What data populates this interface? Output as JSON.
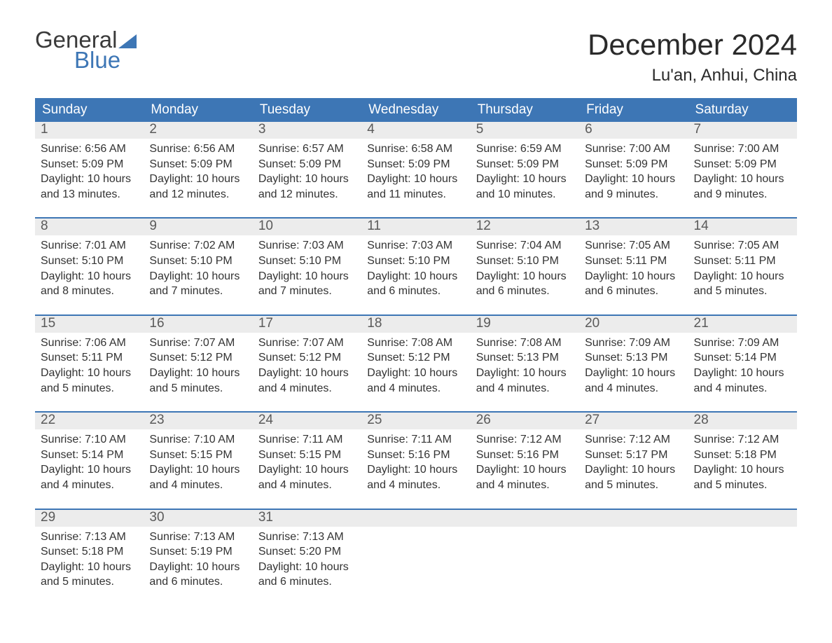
{
  "logo": {
    "word1": "General",
    "word2": "Blue",
    "sail_color": "#3d76b5",
    "text_gray": "#3a3a3a"
  },
  "title": "December 2024",
  "location": "Lu'an, Anhui, China",
  "colors": {
    "header_bg": "#3d76b5",
    "header_text": "#ffffff",
    "datebar_bg": "#ececec",
    "datebar_text": "#5a5a5a",
    "body_text": "#333333",
    "week_divider": "#3d76b5",
    "page_bg": "#ffffff"
  },
  "fonts": {
    "title_size_pt": 32,
    "location_size_pt": 18,
    "dayname_size_pt": 14,
    "body_size_pt": 12
  },
  "day_names": [
    "Sunday",
    "Monday",
    "Tuesday",
    "Wednesday",
    "Thursday",
    "Friday",
    "Saturday"
  ],
  "weeks": [
    [
      {
        "date": "1",
        "sunrise": "Sunrise: 6:56 AM",
        "sunset": "Sunset: 5:09 PM",
        "daylight": "Daylight: 10 hours and 13 minutes."
      },
      {
        "date": "2",
        "sunrise": "Sunrise: 6:56 AM",
        "sunset": "Sunset: 5:09 PM",
        "daylight": "Daylight: 10 hours and 12 minutes."
      },
      {
        "date": "3",
        "sunrise": "Sunrise: 6:57 AM",
        "sunset": "Sunset: 5:09 PM",
        "daylight": "Daylight: 10 hours and 12 minutes."
      },
      {
        "date": "4",
        "sunrise": "Sunrise: 6:58 AM",
        "sunset": "Sunset: 5:09 PM",
        "daylight": "Daylight: 10 hours and 11 minutes."
      },
      {
        "date": "5",
        "sunrise": "Sunrise: 6:59 AM",
        "sunset": "Sunset: 5:09 PM",
        "daylight": "Daylight: 10 hours and 10 minutes."
      },
      {
        "date": "6",
        "sunrise": "Sunrise: 7:00 AM",
        "sunset": "Sunset: 5:09 PM",
        "daylight": "Daylight: 10 hours and 9 minutes."
      },
      {
        "date": "7",
        "sunrise": "Sunrise: 7:00 AM",
        "sunset": "Sunset: 5:09 PM",
        "daylight": "Daylight: 10 hours and 9 minutes."
      }
    ],
    [
      {
        "date": "8",
        "sunrise": "Sunrise: 7:01 AM",
        "sunset": "Sunset: 5:10 PM",
        "daylight": "Daylight: 10 hours and 8 minutes."
      },
      {
        "date": "9",
        "sunrise": "Sunrise: 7:02 AM",
        "sunset": "Sunset: 5:10 PM",
        "daylight": "Daylight: 10 hours and 7 minutes."
      },
      {
        "date": "10",
        "sunrise": "Sunrise: 7:03 AM",
        "sunset": "Sunset: 5:10 PM",
        "daylight": "Daylight: 10 hours and 7 minutes."
      },
      {
        "date": "11",
        "sunrise": "Sunrise: 7:03 AM",
        "sunset": "Sunset: 5:10 PM",
        "daylight": "Daylight: 10 hours and 6 minutes."
      },
      {
        "date": "12",
        "sunrise": "Sunrise: 7:04 AM",
        "sunset": "Sunset: 5:10 PM",
        "daylight": "Daylight: 10 hours and 6 minutes."
      },
      {
        "date": "13",
        "sunrise": "Sunrise: 7:05 AM",
        "sunset": "Sunset: 5:11 PM",
        "daylight": "Daylight: 10 hours and 6 minutes."
      },
      {
        "date": "14",
        "sunrise": "Sunrise: 7:05 AM",
        "sunset": "Sunset: 5:11 PM",
        "daylight": "Daylight: 10 hours and 5 minutes."
      }
    ],
    [
      {
        "date": "15",
        "sunrise": "Sunrise: 7:06 AM",
        "sunset": "Sunset: 5:11 PM",
        "daylight": "Daylight: 10 hours and 5 minutes."
      },
      {
        "date": "16",
        "sunrise": "Sunrise: 7:07 AM",
        "sunset": "Sunset: 5:12 PM",
        "daylight": "Daylight: 10 hours and 5 minutes."
      },
      {
        "date": "17",
        "sunrise": "Sunrise: 7:07 AM",
        "sunset": "Sunset: 5:12 PM",
        "daylight": "Daylight: 10 hours and 4 minutes."
      },
      {
        "date": "18",
        "sunrise": "Sunrise: 7:08 AM",
        "sunset": "Sunset: 5:12 PM",
        "daylight": "Daylight: 10 hours and 4 minutes."
      },
      {
        "date": "19",
        "sunrise": "Sunrise: 7:08 AM",
        "sunset": "Sunset: 5:13 PM",
        "daylight": "Daylight: 10 hours and 4 minutes."
      },
      {
        "date": "20",
        "sunrise": "Sunrise: 7:09 AM",
        "sunset": "Sunset: 5:13 PM",
        "daylight": "Daylight: 10 hours and 4 minutes."
      },
      {
        "date": "21",
        "sunrise": "Sunrise: 7:09 AM",
        "sunset": "Sunset: 5:14 PM",
        "daylight": "Daylight: 10 hours and 4 minutes."
      }
    ],
    [
      {
        "date": "22",
        "sunrise": "Sunrise: 7:10 AM",
        "sunset": "Sunset: 5:14 PM",
        "daylight": "Daylight: 10 hours and 4 minutes."
      },
      {
        "date": "23",
        "sunrise": "Sunrise: 7:10 AM",
        "sunset": "Sunset: 5:15 PM",
        "daylight": "Daylight: 10 hours and 4 minutes."
      },
      {
        "date": "24",
        "sunrise": "Sunrise: 7:11 AM",
        "sunset": "Sunset: 5:15 PM",
        "daylight": "Daylight: 10 hours and 4 minutes."
      },
      {
        "date": "25",
        "sunrise": "Sunrise: 7:11 AM",
        "sunset": "Sunset: 5:16 PM",
        "daylight": "Daylight: 10 hours and 4 minutes."
      },
      {
        "date": "26",
        "sunrise": "Sunrise: 7:12 AM",
        "sunset": "Sunset: 5:16 PM",
        "daylight": "Daylight: 10 hours and 4 minutes."
      },
      {
        "date": "27",
        "sunrise": "Sunrise: 7:12 AM",
        "sunset": "Sunset: 5:17 PM",
        "daylight": "Daylight: 10 hours and 5 minutes."
      },
      {
        "date": "28",
        "sunrise": "Sunrise: 7:12 AM",
        "sunset": "Sunset: 5:18 PM",
        "daylight": "Daylight: 10 hours and 5 minutes."
      }
    ],
    [
      {
        "date": "29",
        "sunrise": "Sunrise: 7:13 AM",
        "sunset": "Sunset: 5:18 PM",
        "daylight": "Daylight: 10 hours and 5 minutes."
      },
      {
        "date": "30",
        "sunrise": "Sunrise: 7:13 AM",
        "sunset": "Sunset: 5:19 PM",
        "daylight": "Daylight: 10 hours and 6 minutes."
      },
      {
        "date": "31",
        "sunrise": "Sunrise: 7:13 AM",
        "sunset": "Sunset: 5:20 PM",
        "daylight": "Daylight: 10 hours and 6 minutes."
      },
      {
        "date": "",
        "sunrise": "",
        "sunset": "",
        "daylight": ""
      },
      {
        "date": "",
        "sunrise": "",
        "sunset": "",
        "daylight": ""
      },
      {
        "date": "",
        "sunrise": "",
        "sunset": "",
        "daylight": ""
      },
      {
        "date": "",
        "sunrise": "",
        "sunset": "",
        "daylight": ""
      }
    ]
  ]
}
